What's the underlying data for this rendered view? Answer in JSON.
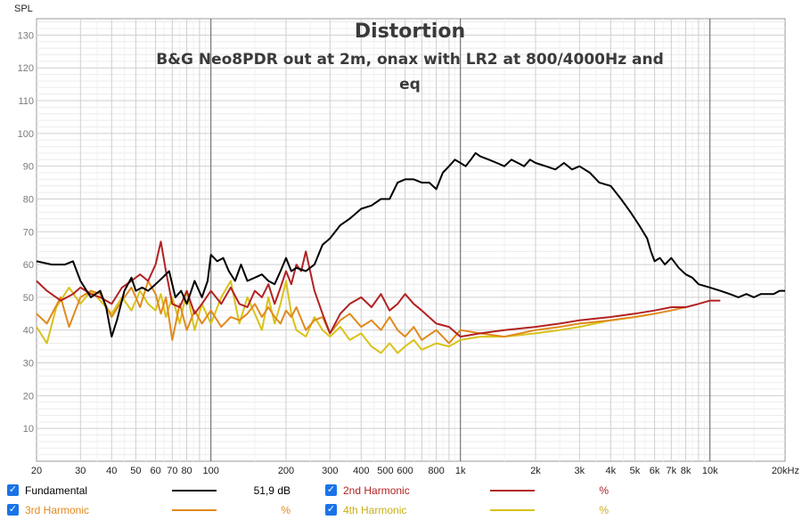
{
  "chart_data": {
    "type": "line",
    "title": "Distortion",
    "subtitle_lines": [
      "B&G Neo8PDR out at 2m, onax with LR2 at 800/4000Hz and",
      "eq"
    ],
    "ylabel": "SPL",
    "xscale": "log",
    "xlim": [
      20,
      20000
    ],
    "ylim": [
      0,
      135
    ],
    "yticks": [
      10,
      20,
      30,
      40,
      50,
      60,
      70,
      80,
      90,
      100,
      110,
      120,
      130
    ],
    "xticks": [
      20,
      30,
      40,
      50,
      60,
      70,
      80,
      100,
      200,
      300,
      400,
      500,
      600,
      800,
      1000,
      2000,
      3000,
      4000,
      5000,
      6000,
      7000,
      8000,
      10000,
      20000
    ],
    "xtick_labels": [
      "20",
      "30",
      "40",
      "50",
      "60",
      "70",
      "80",
      "100",
      "200",
      "300",
      "400",
      "500",
      "600",
      "800",
      "1k",
      "2k",
      "3k",
      "4k",
      "5k",
      "6k",
      "7k",
      "8k",
      "10k",
      "20kHz"
    ],
    "grid": true,
    "series": [
      {
        "name": "Fundamental",
        "color": "#000000",
        "value_text": "51,9 dB",
        "x": [
          20,
          23,
          26,
          28,
          30,
          33,
          36,
          38,
          40,
          42,
          45,
          48,
          50,
          53,
          56,
          60,
          64,
          68,
          72,
          76,
          80,
          86,
          92,
          97,
          100,
          106,
          112,
          118,
          125,
          132,
          140,
          150,
          160,
          170,
          180,
          190,
          200,
          210,
          220,
          240,
          260,
          280,
          300,
          330,
          360,
          400,
          440,
          480,
          520,
          560,
          600,
          650,
          700,
          750,
          800,
          850,
          900,
          950,
          1000,
          1050,
          1100,
          1150,
          1200,
          1300,
          1400,
          1500,
          1600,
          1700,
          1800,
          1900,
          2000,
          2200,
          2400,
          2600,
          2800,
          3000,
          3300,
          3600,
          4000,
          4400,
          4800,
          5200,
          5600,
          5800,
          6000,
          6300,
          6600,
          7000,
          7500,
          8000,
          8500,
          9000,
          10000,
          11000,
          12000,
          13000,
          14000,
          15000,
          16000,
          17000,
          18000,
          19000,
          20000
        ],
        "y": [
          61,
          60,
          60,
          61,
          55,
          50,
          52,
          47,
          38,
          43,
          52,
          56,
          52,
          53,
          52,
          54,
          56,
          58,
          50,
          52,
          48,
          55,
          50,
          55,
          63,
          61,
          62,
          58,
          55,
          60,
          55,
          56,
          57,
          55,
          54,
          58,
          62,
          58,
          59,
          58,
          60,
          66,
          68,
          72,
          74,
          77,
          78,
          80,
          80,
          85,
          86,
          86,
          85,
          85,
          83,
          88,
          90,
          92,
          91,
          90,
          92,
          94,
          93,
          92,
          91,
          90,
          92,
          91,
          90,
          92,
          91,
          90,
          89,
          91,
          89,
          90,
          88,
          85,
          84,
          80,
          76,
          72,
          68,
          64,
          61,
          62,
          60,
          62,
          59,
          57,
          56,
          54,
          53,
          52,
          51,
          50,
          51,
          50,
          51,
          51,
          51,
          52,
          52
        ]
      },
      {
        "name": "2nd Harmonic",
        "color": "#b22222",
        "value_text": "%",
        "x": [
          20,
          22,
          25,
          28,
          30,
          33,
          36,
          40,
          44,
          48,
          52,
          56,
          60,
          63,
          66,
          70,
          75,
          80,
          86,
          92,
          100,
          110,
          120,
          130,
          140,
          150,
          160,
          170,
          180,
          190,
          200,
          210,
          220,
          230,
          240,
          260,
          280,
          300,
          330,
          360,
          400,
          440,
          480,
          520,
          560,
          600,
          650,
          700,
          800,
          900,
          1000,
          1200,
          1500,
          2000,
          2500,
          3000,
          4000,
          5000,
          6000,
          7000,
          8000,
          9000,
          10000,
          11000
        ],
        "y": [
          55,
          52,
          49,
          51,
          53,
          51,
          50,
          48,
          53,
          55,
          57,
          55,
          60,
          67,
          58,
          48,
          47,
          52,
          45,
          48,
          52,
          48,
          53,
          48,
          47,
          52,
          50,
          54,
          48,
          53,
          58,
          54,
          60,
          58,
          64,
          52,
          45,
          39,
          45,
          48,
          50,
          47,
          51,
          46,
          48,
          51,
          48,
          46,
          42,
          41,
          38,
          39,
          40,
          41,
          42,
          43,
          44,
          45,
          46,
          47,
          47,
          48,
          49,
          49
        ]
      },
      {
        "name": "3rd Harmonic",
        "color": "#e08a1e",
        "value_text": "%",
        "x": [
          20,
          22,
          25,
          27,
          30,
          33,
          36,
          40,
          44,
          48,
          52,
          56,
          60,
          63,
          66,
          70,
          75,
          80,
          86,
          92,
          100,
          110,
          120,
          130,
          140,
          150,
          160,
          170,
          180,
          190,
          200,
          210,
          220,
          240,
          260,
          280,
          300,
          330,
          360,
          400,
          440,
          480,
          520,
          560,
          600,
          650,
          700,
          800,
          900,
          1000,
          1200,
          1500,
          2000,
          2500,
          3000,
          4000,
          5000,
          6000,
          7000,
          8000
        ],
        "y": [
          45,
          42,
          50,
          41,
          50,
          52,
          51,
          44,
          49,
          53,
          47,
          55,
          51,
          45,
          50,
          37,
          48,
          40,
          46,
          42,
          46,
          41,
          44,
          43,
          45,
          48,
          44,
          47,
          44,
          42,
          46,
          44,
          47,
          40,
          43,
          44,
          39,
          43,
          45,
          41,
          43,
          40,
          44,
          40,
          38,
          41,
          37,
          40,
          36,
          40,
          39,
          38,
          40,
          41,
          42,
          43,
          44,
          45,
          46,
          47
        ]
      },
      {
        "name": "4th Harmonic",
        "color": "#d9c21a",
        "value_text": "%",
        "x": [
          20,
          22,
          24,
          27,
          30,
          33,
          36,
          40,
          44,
          48,
          52,
          56,
          60,
          63,
          66,
          70,
          75,
          80,
          86,
          92,
          100,
          110,
          120,
          130,
          140,
          150,
          160,
          170,
          180,
          190,
          200,
          210,
          220,
          240,
          260,
          280,
          300,
          330,
          360,
          400,
          440,
          480,
          520,
          560,
          600,
          650,
          700,
          800,
          900,
          1000,
          1200,
          1500,
          2000,
          2500,
          3000,
          4000,
          5000,
          6000
        ],
        "y": [
          41,
          36,
          47,
          53,
          48,
          52,
          49,
          45,
          50,
          46,
          52,
          48,
          46,
          51,
          44,
          50,
          42,
          52,
          40,
          48,
          42,
          50,
          55,
          42,
          50,
          45,
          40,
          50,
          42,
          48,
          55,
          45,
          40,
          38,
          44,
          40,
          38,
          41,
          37,
          39,
          35,
          33,
          36,
          33,
          35,
          37,
          34,
          36,
          35,
          37,
          38,
          38,
          39,
          40,
          41,
          43,
          44,
          45
        ]
      }
    ]
  }
}
